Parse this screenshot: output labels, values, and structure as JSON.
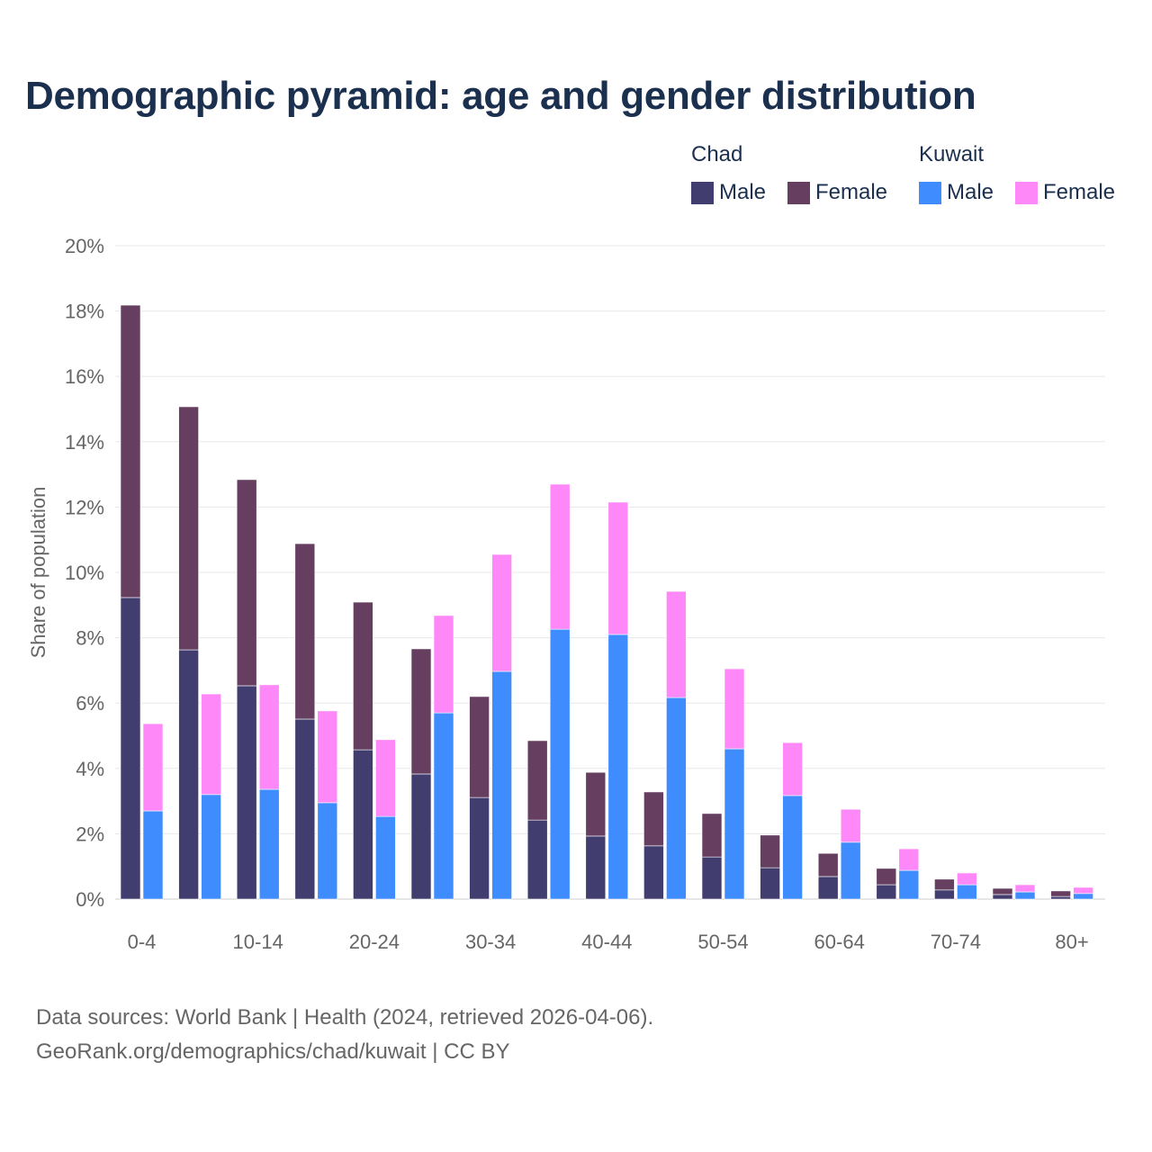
{
  "chart_data": {
    "type": "bar",
    "stacked": true,
    "title": "Demographic pyramid: age and gender distribution",
    "xlabel": "",
    "ylabel": "Share of population",
    "ylim": [
      0,
      20
    ],
    "yticks": [
      "0%",
      "2%",
      "4%",
      "6%",
      "8%",
      "10%",
      "12%",
      "14%",
      "16%",
      "18%",
      "20%"
    ],
    "categories": [
      "0-4",
      "5-9",
      "10-14",
      "15-19",
      "20-24",
      "25-29",
      "30-34",
      "35-39",
      "40-44",
      "45-49",
      "50-54",
      "55-59",
      "60-64",
      "65-69",
      "70-74",
      "75-79",
      "80+"
    ],
    "xtick_labels": [
      "0-4",
      "10-14",
      "20-24",
      "30-34",
      "40-44",
      "50-54",
      "60-64",
      "70-74",
      "80+"
    ],
    "groups": [
      {
        "name": "Chad",
        "series": [
          {
            "name": "Male",
            "color": "#413d6e",
            "values": [
              9.23,
              7.63,
              6.53,
              5.51,
              4.57,
              3.83,
              3.11,
              2.42,
              1.93,
              1.63,
              1.29,
              0.96,
              0.69,
              0.44,
              0.28,
              0.14,
              0.08
            ]
          },
          {
            "name": "Female",
            "color": "#663f60",
            "values": [
              8.95,
              7.44,
              6.31,
              5.37,
              4.52,
              3.83,
              3.09,
              2.43,
              1.95,
              1.65,
              1.33,
              1.0,
              0.71,
              0.5,
              0.33,
              0.19,
              0.17
            ]
          }
        ]
      },
      {
        "name": "Kuwait",
        "series": [
          {
            "name": "Male",
            "color": "#3f8cff",
            "values": [
              2.7,
              3.2,
              3.36,
              2.95,
              2.53,
              5.7,
              6.97,
              8.26,
              8.1,
              6.17,
              4.6,
              3.17,
              1.74,
              0.88,
              0.44,
              0.22,
              0.17
            ]
          },
          {
            "name": "Female",
            "color": "#ff88f8",
            "values": [
              2.67,
              3.08,
              3.2,
              2.81,
              2.35,
              2.98,
              3.58,
              4.44,
              4.05,
              3.25,
              2.45,
              1.62,
              1.01,
              0.66,
              0.36,
              0.22,
              0.19
            ]
          }
        ]
      }
    ],
    "legend": "top-right",
    "grid": true
  },
  "footer": {
    "source": "Data sources: World Bank | Health (2024, retrieved 2026-04-06).",
    "link": "GeoRank.org/demographics/chad/kuwait | CC BY"
  }
}
